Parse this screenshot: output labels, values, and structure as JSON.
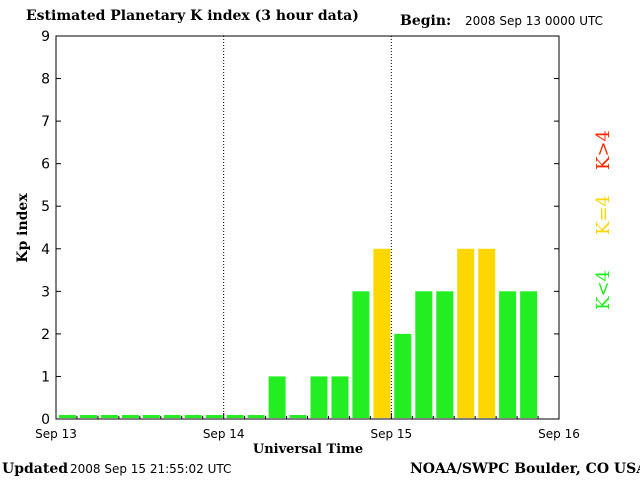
{
  "header": {
    "title": "Estimated Planetary K index (3 hour data)",
    "begin_label": "Begin:",
    "begin_value": "2008 Sep 13 0000 UTC"
  },
  "footer": {
    "updated_label": "Updated",
    "updated_value": "2008 Sep 15 21:55:02 UTC",
    "credit": "NOAA/SWPC Boulder, CO USA"
  },
  "legend": [
    {
      "label": "K>4",
      "color": "#ff2a00"
    },
    {
      "label": "K=4",
      "color": "#ffd700"
    },
    {
      "label": "K<4",
      "color": "#22ee22"
    }
  ],
  "chart_data": {
    "type": "bar",
    "title": "Estimated Planetary K index (3 hour data)",
    "xlabel": "Universal Time",
    "ylabel": "Kp index",
    "ylim": [
      0,
      9
    ],
    "yticks": [
      "0",
      "1",
      "2",
      "3",
      "4",
      "5",
      "6",
      "7",
      "8",
      "9"
    ],
    "x_day_ticks": [
      "Sep 13",
      "Sep 14",
      "Sep 15",
      "Sep 16"
    ],
    "bars_per_day": 8,
    "values": [
      0,
      0,
      0,
      0,
      0,
      0,
      0,
      0,
      0,
      0,
      1,
      0,
      1,
      1,
      3,
      4,
      2,
      3,
      3,
      4,
      4,
      3,
      3
    ],
    "colors": {
      "below_4": "#22ee22",
      "equal_4": "#ffd700",
      "above_4": "#ff2a00"
    },
    "grid": "dotted vertical lines at day boundaries"
  }
}
